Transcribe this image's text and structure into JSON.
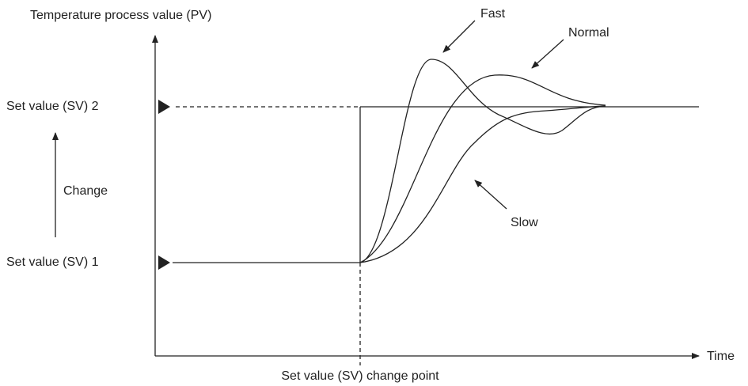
{
  "y_axis_label": "Temperature process value (PV)",
  "x_axis_label": "Time",
  "set_value_2": "Set value (SV) 2",
  "set_value_1": "Set value (SV) 1",
  "change_label": "Change",
  "change_point_label": "Set value (SV) change point",
  "curves": {
    "fast": "Fast",
    "normal": "Normal",
    "slow": "Slow"
  }
}
